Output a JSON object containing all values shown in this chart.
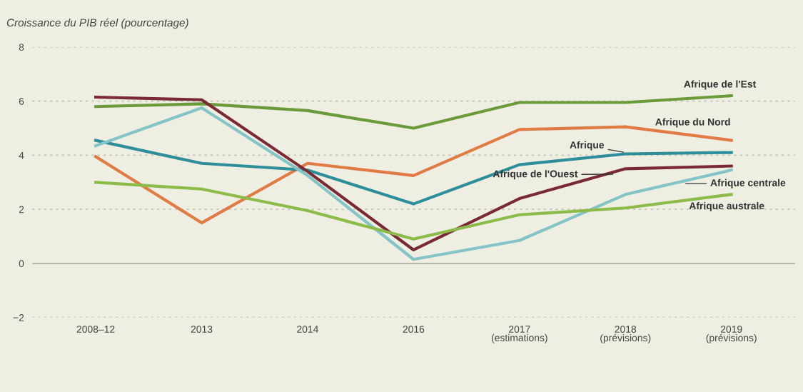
{
  "chart_data": {
    "type": "line",
    "ylabel": "Croissance du PIB réel (pourcentage)",
    "categories": [
      "2008–12",
      "2013",
      "2014",
      "2016",
      "2017\n(estimations)",
      "2018\n(prévisions)",
      "2019\n(prévisions)"
    ],
    "ylim": [
      -2,
      8
    ],
    "yticks": [
      {
        "value": -2,
        "label": "−2"
      },
      0,
      2,
      4,
      6,
      8
    ],
    "grid": "y",
    "legend": false,
    "marker": "none",
    "line_style": "solid",
    "ref_lines": [
      {
        "axis": "y",
        "value": 0,
        "color": "#b8b8ac",
        "line_style": "solid"
      }
    ],
    "series": [
      {
        "name": "Afrique de l'Est",
        "color": "#6b9a3a",
        "values": [
          5.8,
          5.9,
          5.65,
          5.0,
          5.95,
          5.95,
          6.2
        ]
      },
      {
        "name": "Afrique du Nord",
        "color": "#e07b45",
        "values": [
          3.95,
          1.5,
          3.7,
          3.25,
          4.95,
          5.05,
          4.55
        ]
      },
      {
        "name": "Afrique",
        "color": "#2e8f9a",
        "values": [
          4.55,
          3.7,
          3.45,
          2.2,
          3.65,
          4.05,
          4.1
        ]
      },
      {
        "name": "Afrique de l'Ouest",
        "color": "#7a2a35",
        "values": [
          6.15,
          6.05,
          3.4,
          0.5,
          2.4,
          3.5,
          3.6
        ]
      },
      {
        "name": "Afrique centrale",
        "color": "#84c3c6",
        "values": [
          4.35,
          5.75,
          3.25,
          0.15,
          0.85,
          2.55,
          3.45
        ]
      },
      {
        "name": "Afrique australe",
        "color": "#8dbb4a",
        "values": [
          3.0,
          2.75,
          1.95,
          0.9,
          1.8,
          2.05,
          2.55
        ]
      }
    ]
  }
}
